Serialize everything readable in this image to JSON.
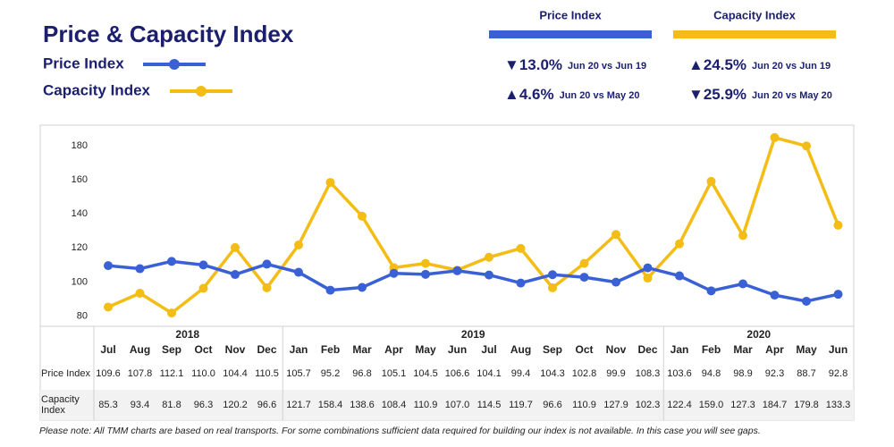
{
  "title": "Price & Capacity Index",
  "kpis": [
    {
      "name": "Price Index",
      "color": "#3a60d6",
      "items": [
        {
          "change": "▼13.0%",
          "comparison": "Jun 20 vs Jun 19"
        },
        {
          "change": "▲4.6%",
          "comparison": "Jun 20 vs May 20"
        }
      ]
    },
    {
      "name": "Capacity Index",
      "color": "#f4bd16",
      "items": [
        {
          "change": "▲24.5%",
          "comparison": "Jun 20 vs Jun 19"
        },
        {
          "change": "▼25.9%",
          "comparison": "Jun 20 vs May 20"
        }
      ]
    }
  ],
  "chart_data": {
    "type": "line",
    "years": [
      "2018",
      "2019",
      "2020"
    ],
    "categories": [
      "Jul",
      "Aug",
      "Sep",
      "Oct",
      "Nov",
      "Dec",
      "Jan",
      "Feb",
      "Mar",
      "Apr",
      "May",
      "Jun",
      "Jul",
      "Aug",
      "Sep",
      "Oct",
      "Nov",
      "Dec",
      "Jan",
      "Feb",
      "Mar",
      "Apr",
      "May",
      "Jun"
    ],
    "series": [
      {
        "name": "Price Index",
        "color": "#3a60d6",
        "values": [
          109.6,
          107.8,
          112.1,
          110.0,
          104.4,
          110.5,
          105.7,
          95.2,
          96.8,
          105.1,
          104.5,
          106.6,
          104.1,
          99.4,
          104.3,
          102.8,
          99.9,
          108.3,
          103.6,
          94.8,
          98.9,
          92.3,
          88.7,
          92.8
        ],
        "value_labels": [
          "109.6",
          "107.8",
          "112.1",
          "110.0",
          "104.4",
          "110.5",
          "105.7",
          "95.2",
          "96.8",
          "105.1",
          "104.5",
          "106.6",
          "104.1",
          "99.4",
          "104.3",
          "102.8",
          "99.9",
          "108.3",
          "103.6",
          "94.8",
          "98.9",
          "92.3",
          "88.7",
          "92.8"
        ]
      },
      {
        "name": "Capacity Index",
        "color": "#f4bd16",
        "values": [
          85.3,
          93.4,
          81.8,
          96.3,
          120.2,
          96.6,
          121.7,
          158.4,
          138.6,
          108.4,
          110.9,
          107.0,
          114.5,
          119.7,
          96.6,
          110.9,
          127.9,
          102.3,
          122.4,
          159.0,
          127.3,
          184.7,
          179.8,
          133.3
        ],
        "value_labels": [
          "85.3",
          "93.4",
          "81.8",
          "96.3",
          "120.2",
          "96.6",
          "121.7",
          "158.4",
          "138.6",
          "108.4",
          "110.9",
          "107.0",
          "114.5",
          "119.7",
          "96.6",
          "110.9",
          "127.9",
          "102.3",
          "122.4",
          "159.0",
          "127.3",
          "184.7",
          "179.8",
          "133.3"
        ]
      }
    ],
    "ylim": [
      74,
      192
    ],
    "yticks": [
      80,
      100,
      120,
      140,
      160,
      180
    ],
    "grid": false
  },
  "note": "Please note: All TMM charts are based on real transports. For some combinations sufficient data required for building our index is not available. In this case you will see gaps."
}
